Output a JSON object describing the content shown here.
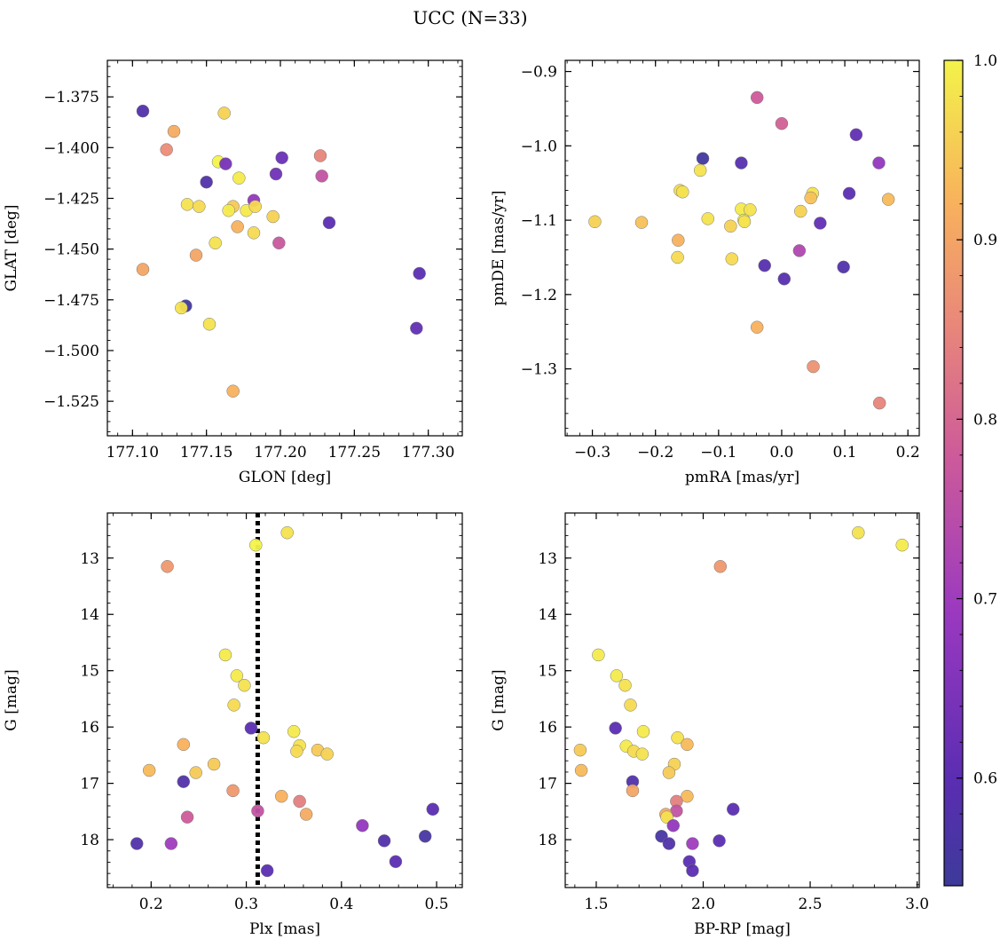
{
  "figure": {
    "title": "UCC (N=33)",
    "colorbar": {
      "range": [
        0.54,
        1.0
      ],
      "ticks": [
        0.6,
        0.7,
        0.8,
        0.9,
        1.0
      ],
      "tick_labels": [
        "0.6",
        "0.7",
        "0.8",
        "0.9",
        "1.0"
      ],
      "colormap": "plasma"
    },
    "colors": {
      "dark": "#3a3d9b",
      "purple": "#6a2fb5",
      "magenta": "#a43fc0",
      "pink": "#d46a8c",
      "salmon": "#ee9370",
      "orange": "#f9b45a",
      "yellow": "#f6e94f",
      "bright": "#f2f24a",
      "vline": "#000000"
    }
  },
  "chart_data": [
    {
      "type": "scatter",
      "xlabel": "GLON [deg]",
      "ylabel": "GLAT [deg]",
      "xlim": [
        177.083,
        177.323
      ],
      "ylim": [
        -1.542,
        -1.357
      ],
      "xticks": [
        177.1,
        177.15,
        177.2,
        177.25,
        177.3
      ],
      "xtick_labels": [
        "177.10",
        "177.15",
        "177.20",
        "177.25",
        "177.30"
      ],
      "yticks": [
        -1.375,
        -1.4,
        -1.425,
        -1.45,
        -1.475,
        -1.5,
        -1.525
      ],
      "ytick_labels": [
        "−1.375",
        "−1.400",
        "−1.425",
        "−1.450",
        "−1.475",
        "−1.500",
        "−1.525"
      ],
      "points": [
        {
          "x": 177.107,
          "y": -1.382,
          "c": 0.58
        },
        {
          "x": 177.128,
          "y": -1.392,
          "c": 0.91
        },
        {
          "x": 177.123,
          "y": -1.401,
          "c": 0.86
        },
        {
          "x": 177.162,
          "y": -1.383,
          "c": 0.96
        },
        {
          "x": 177.158,
          "y": -1.407,
          "c": 1.0
        },
        {
          "x": 177.163,
          "y": -1.408,
          "c": 0.64
        },
        {
          "x": 177.15,
          "y": -1.417,
          "c": 0.58
        },
        {
          "x": 177.172,
          "y": -1.415,
          "c": 0.99
        },
        {
          "x": 177.137,
          "y": -1.428,
          "c": 0.98
        },
        {
          "x": 177.145,
          "y": -1.429,
          "c": 0.97
        },
        {
          "x": 177.168,
          "y": -1.429,
          "c": 0.95
        },
        {
          "x": 177.165,
          "y": -1.431,
          "c": 0.99
        },
        {
          "x": 177.177,
          "y": -1.431,
          "c": 0.99
        },
        {
          "x": 177.182,
          "y": -1.426,
          "c": 0.68
        },
        {
          "x": 177.183,
          "y": -1.429,
          "c": 0.97
        },
        {
          "x": 177.197,
          "y": -1.413,
          "c": 0.63
        },
        {
          "x": 177.201,
          "y": -1.405,
          "c": 0.62
        },
        {
          "x": 177.227,
          "y": -1.404,
          "c": 0.85
        },
        {
          "x": 177.228,
          "y": -1.414,
          "c": 0.76
        },
        {
          "x": 177.195,
          "y": -1.434,
          "c": 0.96
        },
        {
          "x": 177.171,
          "y": -1.439,
          "c": 0.92
        },
        {
          "x": 177.182,
          "y": -1.442,
          "c": 0.97
        },
        {
          "x": 177.156,
          "y": -1.447,
          "c": 0.98
        },
        {
          "x": 177.199,
          "y": -1.447,
          "c": 0.77
        },
        {
          "x": 177.233,
          "y": -1.437,
          "c": 0.6
        },
        {
          "x": 177.143,
          "y": -1.453,
          "c": 0.9
        },
        {
          "x": 177.107,
          "y": -1.46,
          "c": 0.9
        },
        {
          "x": 177.294,
          "y": -1.462,
          "c": 0.6
        },
        {
          "x": 177.136,
          "y": -1.478,
          "c": 0.55
        },
        {
          "x": 177.133,
          "y": -1.479,
          "c": 0.98
        },
        {
          "x": 177.152,
          "y": -1.487,
          "c": 0.98
        },
        {
          "x": 177.292,
          "y": -1.489,
          "c": 0.61
        },
        {
          "x": 177.168,
          "y": -1.52,
          "c": 0.92
        }
      ]
    },
    {
      "type": "scatter",
      "xlabel": "pmRA [mas/yr]",
      "ylabel": "pmDE [mas/yr]",
      "xlim": [
        -0.343,
        0.218
      ],
      "ylim": [
        -1.39,
        -0.885
      ],
      "xticks": [
        -0.3,
        -0.2,
        -0.1,
        0.0,
        0.1,
        0.2
      ],
      "xtick_labels": [
        "−0.3",
        "−0.2",
        "−0.1",
        "0.0",
        "0.1",
        "0.2"
      ],
      "yticks": [
        -0.9,
        -1.0,
        -1.1,
        -1.2,
        -1.3
      ],
      "ytick_labels": [
        "−0.9",
        "−1.0",
        "−1.1",
        "−1.2",
        "−1.3"
      ],
      "points": [
        {
          "x": -0.039,
          "y": -0.935,
          "c": 0.78
        },
        {
          "x": 0.0,
          "y": -0.97,
          "c": 0.79
        },
        {
          "x": 0.118,
          "y": -0.985,
          "c": 0.61
        },
        {
          "x": -0.125,
          "y": -1.017,
          "c": 0.55
        },
        {
          "x": -0.064,
          "y": -1.023,
          "c": 0.59
        },
        {
          "x": 0.154,
          "y": -1.023,
          "c": 0.68
        },
        {
          "x": -0.129,
          "y": -1.033,
          "c": 0.98
        },
        {
          "x": -0.161,
          "y": -1.06,
          "c": 0.97
        },
        {
          "x": -0.157,
          "y": -1.062,
          "c": 0.98
        },
        {
          "x": 0.107,
          "y": -1.064,
          "c": 0.6
        },
        {
          "x": 0.049,
          "y": -1.064,
          "c": 0.98
        },
        {
          "x": 0.046,
          "y": -1.07,
          "c": 0.94
        },
        {
          "x": 0.169,
          "y": -1.072,
          "c": 0.93
        },
        {
          "x": -0.064,
          "y": -1.085,
          "c": 0.99
        },
        {
          "x": -0.05,
          "y": -1.086,
          "c": 0.98
        },
        {
          "x": 0.03,
          "y": -1.088,
          "c": 0.96
        },
        {
          "x": -0.117,
          "y": -1.098,
          "c": 0.98
        },
        {
          "x": -0.06,
          "y": -1.1,
          "c": 1.0
        },
        {
          "x": -0.059,
          "y": -1.102,
          "c": 0.98
        },
        {
          "x": -0.296,
          "y": -1.102,
          "c": 0.96
        },
        {
          "x": -0.222,
          "y": -1.103,
          "c": 0.94
        },
        {
          "x": 0.061,
          "y": -1.104,
          "c": 0.61
        },
        {
          "x": -0.081,
          "y": -1.108,
          "c": 0.96
        },
        {
          "x": -0.164,
          "y": -1.127,
          "c": 0.92
        },
        {
          "x": 0.028,
          "y": -1.141,
          "c": 0.73
        },
        {
          "x": -0.165,
          "y": -1.15,
          "c": 0.97
        },
        {
          "x": -0.079,
          "y": -1.152,
          "c": 0.97
        },
        {
          "x": -0.027,
          "y": -1.161,
          "c": 0.59
        },
        {
          "x": 0.098,
          "y": -1.163,
          "c": 0.58
        },
        {
          "x": 0.004,
          "y": -1.179,
          "c": 0.59
        },
        {
          "x": -0.039,
          "y": -1.244,
          "c": 0.92
        },
        {
          "x": 0.05,
          "y": -1.297,
          "c": 0.87
        },
        {
          "x": 0.155,
          "y": -1.346,
          "c": 0.85
        }
      ]
    },
    {
      "type": "scatter",
      "xlabel": "Plx [mas]",
      "ylabel": "G [mag]",
      "xlim": [
        0.154,
        0.527
      ],
      "ylim": [
        18.85,
        12.2
      ],
      "inverted_y": true,
      "vline_x": 0.312,
      "xticks": [
        0.2,
        0.3,
        0.4,
        0.5
      ],
      "xtick_labels": [
        "0.2",
        "0.3",
        "0.4",
        "0.5"
      ],
      "yticks": [
        13,
        14,
        15,
        16,
        17,
        18
      ],
      "ytick_labels": [
        "13",
        "14",
        "15",
        "16",
        "17",
        "18"
      ],
      "points": [
        {
          "x": 0.343,
          "y": 12.55,
          "c": 0.98
        },
        {
          "x": 0.31,
          "y": 12.77,
          "c": 1.0
        },
        {
          "x": 0.217,
          "y": 13.15,
          "c": 0.88
        },
        {
          "x": 0.278,
          "y": 14.72,
          "c": 0.99
        },
        {
          "x": 0.29,
          "y": 15.09,
          "c": 0.99
        },
        {
          "x": 0.298,
          "y": 15.26,
          "c": 0.98
        },
        {
          "x": 0.287,
          "y": 15.61,
          "c": 0.97
        },
        {
          "x": 0.305,
          "y": 16.02,
          "c": 0.6
        },
        {
          "x": 0.35,
          "y": 16.08,
          "c": 0.99
        },
        {
          "x": 0.318,
          "y": 16.19,
          "c": 0.98
        },
        {
          "x": 0.234,
          "y": 16.31,
          "c": 0.92
        },
        {
          "x": 0.356,
          "y": 16.33,
          "c": 0.98
        },
        {
          "x": 0.353,
          "y": 16.43,
          "c": 0.97
        },
        {
          "x": 0.375,
          "y": 16.41,
          "c": 0.95
        },
        {
          "x": 0.385,
          "y": 16.48,
          "c": 0.96
        },
        {
          "x": 0.266,
          "y": 16.66,
          "c": 0.95
        },
        {
          "x": 0.198,
          "y": 16.77,
          "c": 0.93
        },
        {
          "x": 0.247,
          "y": 16.81,
          "c": 0.95
        },
        {
          "x": 0.234,
          "y": 16.97,
          "c": 0.58
        },
        {
          "x": 0.286,
          "y": 17.13,
          "c": 0.88
        },
        {
          "x": 0.337,
          "y": 17.23,
          "c": 0.92
        },
        {
          "x": 0.356,
          "y": 17.32,
          "c": 0.84
        },
        {
          "x": 0.496,
          "y": 17.46,
          "c": 0.6
        },
        {
          "x": 0.312,
          "y": 17.49,
          "c": 0.76
        },
        {
          "x": 0.363,
          "y": 17.55,
          "c": 0.91
        },
        {
          "x": 0.238,
          "y": 17.6,
          "c": 0.78
        },
        {
          "x": 0.422,
          "y": 17.75,
          "c": 0.68
        },
        {
          "x": 0.488,
          "y": 17.94,
          "c": 0.56
        },
        {
          "x": 0.445,
          "y": 18.02,
          "c": 0.58
        },
        {
          "x": 0.185,
          "y": 18.07,
          "c": 0.58
        },
        {
          "x": 0.221,
          "y": 18.07,
          "c": 0.7
        },
        {
          "x": 0.457,
          "y": 18.39,
          "c": 0.6
        },
        {
          "x": 0.322,
          "y": 18.55,
          "c": 0.6
        }
      ]
    },
    {
      "type": "scatter",
      "xlabel": "BP-RP [mag]",
      "ylabel": "G [mag]",
      "xlim": [
        1.355,
        3.01
      ],
      "ylim": [
        18.85,
        12.2
      ],
      "inverted_y": true,
      "xticks": [
        1.5,
        2.0,
        2.5,
        3.0
      ],
      "xtick_labels": [
        "1.5",
        "2.0",
        "2.5",
        "3.0"
      ],
      "yticks": [
        13,
        14,
        15,
        16,
        17,
        18
      ],
      "ytick_labels": [
        "13",
        "14",
        "15",
        "16",
        "17",
        "18"
      ],
      "points": [
        {
          "x": 2.725,
          "y": 12.55,
          "c": 0.98
        },
        {
          "x": 2.93,
          "y": 12.77,
          "c": 0.99
        },
        {
          "x": 2.08,
          "y": 13.15,
          "c": 0.88
        },
        {
          "x": 1.51,
          "y": 14.72,
          "c": 0.99
        },
        {
          "x": 1.595,
          "y": 15.09,
          "c": 0.99
        },
        {
          "x": 1.635,
          "y": 15.26,
          "c": 0.98
        },
        {
          "x": 1.66,
          "y": 15.61,
          "c": 0.97
        },
        {
          "x": 1.59,
          "y": 16.02,
          "c": 0.6
        },
        {
          "x": 1.72,
          "y": 16.08,
          "c": 0.99
        },
        {
          "x": 1.88,
          "y": 16.19,
          "c": 0.98
        },
        {
          "x": 1.925,
          "y": 16.31,
          "c": 0.93
        },
        {
          "x": 1.64,
          "y": 16.34,
          "c": 0.99
        },
        {
          "x": 1.425,
          "y": 16.41,
          "c": 0.95
        },
        {
          "x": 1.675,
          "y": 16.43,
          "c": 0.97
        },
        {
          "x": 1.715,
          "y": 16.48,
          "c": 0.98
        },
        {
          "x": 1.865,
          "y": 16.66,
          "c": 0.96
        },
        {
          "x": 1.43,
          "y": 16.77,
          "c": 0.93
        },
        {
          "x": 1.84,
          "y": 16.81,
          "c": 0.95
        },
        {
          "x": 1.67,
          "y": 16.97,
          "c": 0.58
        },
        {
          "x": 1.67,
          "y": 17.13,
          "c": 0.9
        },
        {
          "x": 1.925,
          "y": 17.23,
          "c": 0.93
        },
        {
          "x": 1.875,
          "y": 17.32,
          "c": 0.84
        },
        {
          "x": 2.14,
          "y": 17.46,
          "c": 0.6
        },
        {
          "x": 1.875,
          "y": 17.49,
          "c": 0.76
        },
        {
          "x": 1.825,
          "y": 17.55,
          "c": 0.91
        },
        {
          "x": 1.83,
          "y": 17.6,
          "c": 0.98
        },
        {
          "x": 1.86,
          "y": 17.75,
          "c": 0.68
        },
        {
          "x": 1.805,
          "y": 17.94,
          "c": 0.56
        },
        {
          "x": 2.075,
          "y": 18.02,
          "c": 0.6
        },
        {
          "x": 1.84,
          "y": 18.07,
          "c": 0.58
        },
        {
          "x": 1.95,
          "y": 18.07,
          "c": 0.7
        },
        {
          "x": 1.935,
          "y": 18.39,
          "c": 0.6
        },
        {
          "x": 1.95,
          "y": 18.55,
          "c": 0.6
        }
      ]
    }
  ]
}
